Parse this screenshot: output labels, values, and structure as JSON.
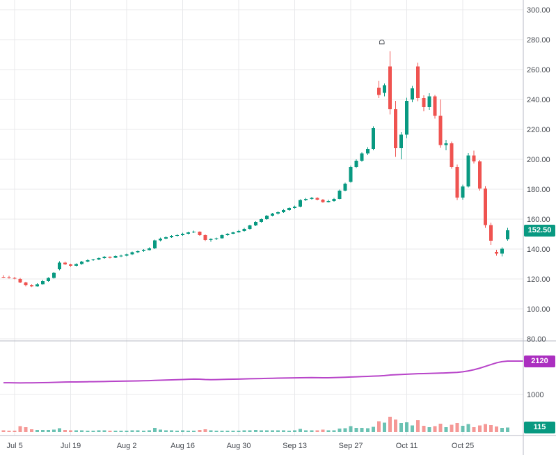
{
  "chart": {
    "colors": {
      "up": "#089981",
      "down": "#ef5350",
      "volume_up": "rgba(8,153,129,0.6)",
      "volume_down": "rgba(239,83,80,0.6)",
      "indicator_line": "#b845c9",
      "indicator_badge": "#ab2fc0",
      "price_badge": "#089981",
      "volume_badge": "#089981",
      "grid": "#e8e9eb",
      "axis_border": "#b7bac4",
      "axis_text": "#44484f",
      "background": "#ffffff"
    },
    "badges": {
      "price": "152.50",
      "indicator": "2120",
      "volume": "115"
    },
    "marker": {
      "i": 68,
      "label": "D"
    },
    "price_axis": [
      {
        "v": 300,
        "label": "300.00"
      },
      {
        "v": 280,
        "label": "280.00"
      },
      {
        "v": 260,
        "label": "260.00"
      },
      {
        "v": 240,
        "label": "240.00"
      },
      {
        "v": 220,
        "label": "220.00"
      },
      {
        "v": 200,
        "label": "200.00"
      },
      {
        "v": 180,
        "label": "180.00"
      },
      {
        "v": 160,
        "label": "160.00"
      },
      {
        "v": 140,
        "label": "140.00"
      },
      {
        "v": 120,
        "label": "120.00"
      },
      {
        "v": 100,
        "label": "100.00"
      },
      {
        "v": 80,
        "label": "80.00"
      }
    ],
    "time_axis": [
      {
        "i": 2,
        "label": "Jul 5"
      },
      {
        "i": 12,
        "label": "Jul 19"
      },
      {
        "i": 22,
        "label": "Aug 2"
      },
      {
        "i": 32,
        "label": "Aug 16"
      },
      {
        "i": 42,
        "label": "Aug 30"
      },
      {
        "i": 52,
        "label": "Sep 13"
      },
      {
        "i": 62,
        "label": "Sep 27"
      },
      {
        "i": 72,
        "label": "Oct 11"
      },
      {
        "i": 82,
        "label": "Oct 25"
      }
    ]
  },
  "chart_data": [
    {
      "type": "candlestick",
      "name": "price",
      "ylim": [
        80,
        300
      ],
      "y_gridstep": 20,
      "last_close": 152.5,
      "fields": [
        "date",
        "open",
        "high",
        "low",
        "close"
      ],
      "candles": [
        [
          "Jul 1",
          121.4,
          122.6,
          120.6,
          121.2
        ],
        [
          "Jul 2",
          121.2,
          122.0,
          120.2,
          120.6
        ],
        [
          "Jul 5",
          120.6,
          121.4,
          119.8,
          120.2
        ],
        [
          "Jul 6",
          120.0,
          120.6,
          117.2,
          117.6
        ],
        [
          "Jul 7",
          117.6,
          118.2,
          115.2,
          115.8
        ],
        [
          "Jul 8",
          115.8,
          116.6,
          114.6,
          115.2
        ],
        [
          "Jul 9",
          115.2,
          117.2,
          114.8,
          116.6
        ],
        [
          "Jul 12",
          116.6,
          119.2,
          116.2,
          118.6
        ],
        [
          "Jul 13",
          118.6,
          121.2,
          118.2,
          120.6
        ],
        [
          "Jul 14",
          120.6,
          124.6,
          120.2,
          124.2
        ],
        [
          "Jul 15",
          126.4,
          131.8,
          125.8,
          131.0
        ],
        [
          "Jul 16",
          131.0,
          131.6,
          129.2,
          129.8
        ],
        [
          "Jul 19",
          129.8,
          130.2,
          128.2,
          128.8
        ],
        [
          "Jul 20",
          128.8,
          130.4,
          128.4,
          129.9
        ],
        [
          "Jul 21",
          129.9,
          132.2,
          129.6,
          131.6
        ],
        [
          "Jul 22",
          131.6,
          133.2,
          131.2,
          132.6
        ],
        [
          "Jul 23",
          132.6,
          133.6,
          132.0,
          133.1
        ],
        [
          "Jul 26",
          133.1,
          134.4,
          132.6,
          133.9
        ],
        [
          "Jul 27",
          133.9,
          135.4,
          133.5,
          134.9
        ],
        [
          "Jul 28",
          134.9,
          135.2,
          133.8,
          134.3
        ],
        [
          "Jul 29",
          134.3,
          135.9,
          134.0,
          135.3
        ],
        [
          "Jul 30",
          135.3,
          136.2,
          134.7,
          135.5
        ],
        [
          "Aug 2",
          135.5,
          136.9,
          135.1,
          136.4
        ],
        [
          "Aug 3",
          136.4,
          138.3,
          136.0,
          137.8
        ],
        [
          "Aug 4",
          137.8,
          139.1,
          137.3,
          138.6
        ],
        [
          "Aug 5",
          138.6,
          139.9,
          138.2,
          139.4
        ],
        [
          "Aug 6",
          139.4,
          141.1,
          139.0,
          140.5
        ],
        [
          "Aug 9",
          140.5,
          146.3,
          140.1,
          145.8
        ],
        [
          "Aug 10",
          145.8,
          147.6,
          145.1,
          147.0
        ],
        [
          "Aug 11",
          147.0,
          148.5,
          146.5,
          147.9
        ],
        [
          "Aug 12",
          147.9,
          149.3,
          147.4,
          148.8
        ],
        [
          "Aug 13",
          148.8,
          149.9,
          148.3,
          149.3
        ],
        [
          "Aug 16",
          149.3,
          150.9,
          148.9,
          150.2
        ],
        [
          "Aug 17",
          150.2,
          151.7,
          149.8,
          151.1
        ],
        [
          "Aug 18",
          151.1,
          152.3,
          150.7,
          151.7
        ],
        [
          "Aug 19",
          151.7,
          151.9,
          148.9,
          149.3
        ],
        [
          "Aug 20",
          149.3,
          149.7,
          145.3,
          146.0
        ],
        [
          "Aug 23",
          146.0,
          147.1,
          144.9,
          146.7
        ],
        [
          "Aug 24",
          146.7,
          147.7,
          146.1,
          147.2
        ],
        [
          "Aug 25",
          147.2,
          149.7,
          146.9,
          149.3
        ],
        [
          "Aug 26",
          149.3,
          150.7,
          148.9,
          150.2
        ],
        [
          "Aug 27",
          150.2,
          151.7,
          149.9,
          151.2
        ],
        [
          "Aug 30",
          151.2,
          152.7,
          150.9,
          152.1
        ],
        [
          "Aug 31",
          152.1,
          154.1,
          151.7,
          153.6
        ],
        [
          "Sep 1",
          153.6,
          156.3,
          153.1,
          155.8
        ],
        [
          "Sep 2",
          155.8,
          158.7,
          155.4,
          158.1
        ],
        [
          "Sep 3",
          158.1,
          160.5,
          157.7,
          160.0
        ],
        [
          "Sep 6",
          160.0,
          162.9,
          159.6,
          162.3
        ],
        [
          "Sep 7",
          162.3,
          164.3,
          161.8,
          163.7
        ],
        [
          "Sep 8",
          163.7,
          165.3,
          163.1,
          164.7
        ],
        [
          "Sep 9",
          164.7,
          166.7,
          164.2,
          166.0
        ],
        [
          "Sep 10",
          166.0,
          168.0,
          165.6,
          167.4
        ],
        [
          "Sep 13",
          167.4,
          169.1,
          166.9,
          168.4
        ],
        [
          "Sep 14",
          168.4,
          173.3,
          168.0,
          172.7
        ],
        [
          "Sep 15",
          172.7,
          174.3,
          172.1,
          173.5
        ],
        [
          "Sep 16",
          173.5,
          174.9,
          173.1,
          174.1
        ],
        [
          "Sep 17",
          174.1,
          174.7,
          172.5,
          173.0
        ],
        [
          "Sep 20",
          173.0,
          173.5,
          170.9,
          171.5
        ],
        [
          "Sep 21",
          171.5,
          173.1,
          171.1,
          172.1
        ],
        [
          "Sep 22",
          172.1,
          174.3,
          171.7,
          173.6
        ],
        [
          "Sep 23",
          173.6,
          179.7,
          173.3,
          179.0
        ],
        [
          "Sep 24",
          179.0,
          184.5,
          178.5,
          183.8
        ],
        [
          "Sep 27",
          185.0,
          195.9,
          184.5,
          195.0
        ],
        [
          "Sep 28",
          195.0,
          200.1,
          194.1,
          199.0
        ],
        [
          "Sep 29",
          199.0,
          204.7,
          198.3,
          204.0
        ],
        [
          "Sep 30",
          204.0,
          208.1,
          202.7,
          207.0
        ],
        [
          "Oct 1",
          207.0,
          222.0,
          206.1,
          221.0
        ],
        [
          "Oct 4",
          248.0,
          252.6,
          241.0,
          243.0
        ],
        [
          "Oct 5",
          244.5,
          250.6,
          242.1,
          249.5
        ],
        [
          "Oct 6",
          262.0,
          272.4,
          230.1,
          233.5
        ],
        [
          "Oct 7",
          233.5,
          239.1,
          201.7,
          207.5
        ],
        [
          "Oct 8",
          207.5,
          218.1,
          200.1,
          216.5
        ],
        [
          "Oct 11",
          216.5,
          241.1,
          214.1,
          239.0
        ],
        [
          "Oct 12",
          240.0,
          249.1,
          238.1,
          247.5
        ],
        [
          "Oct 13",
          262.0,
          264.7,
          238.9,
          241.0
        ],
        [
          "Oct 14",
          241.0,
          242.7,
          232.1,
          235.0
        ],
        [
          "Oct 15",
          235.0,
          244.1,
          233.1,
          242.0
        ],
        [
          "Oct 18",
          242.0,
          243.1,
          227.1,
          229.0
        ],
        [
          "Oct 19",
          229.0,
          240.1,
          207.6,
          209.5
        ],
        [
          "Oct 20",
          209.5,
          213.1,
          206.1,
          210.6
        ],
        [
          "Oct 21",
          210.6,
          211.9,
          193.7,
          195.0
        ],
        [
          "Oct 22",
          195.0,
          196.5,
          172.7,
          174.5
        ],
        [
          "Oct 25",
          174.5,
          183.1,
          173.1,
          181.8
        ],
        [
          "Oct 26",
          181.8,
          204.1,
          181.1,
          202.6
        ],
        [
          "Oct 27",
          202.6,
          205.9,
          197.1,
          198.5
        ],
        [
          "Oct 28",
          198.5,
          199.5,
          179.1,
          180.5
        ],
        [
          "Oct 29",
          180.5,
          182.1,
          154.1,
          156.0
        ],
        [
          "Nov 1",
          156.0,
          157.7,
          142.9,
          145.5
        ],
        [
          "Nov 2",
          138.2,
          139.5,
          135.5,
          137.0
        ],
        [
          "Nov 3",
          137.0,
          141.1,
          135.1,
          140.2
        ],
        [
          "Nov 4",
          146.5,
          154.1,
          145.6,
          152.5
        ]
      ]
    },
    {
      "type": "line",
      "name": "indicator",
      "last": 2120,
      "ylim": [
        420,
        2750
      ],
      "gridline_value": 1000,
      "gridline_label": "1000",
      "values": [
        1395,
        1393,
        1391,
        1389,
        1390,
        1392,
        1394,
        1397,
        1400,
        1405,
        1412,
        1416,
        1419,
        1421,
        1424,
        1427,
        1430,
        1433,
        1436,
        1439,
        1442,
        1445,
        1448,
        1452,
        1456,
        1460,
        1465,
        1472,
        1478,
        1484,
        1490,
        1496,
        1503,
        1510,
        1516,
        1512,
        1501,
        1495,
        1499,
        1505,
        1509,
        1513,
        1517,
        1522,
        1527,
        1531,
        1535,
        1539,
        1543,
        1547,
        1551,
        1554,
        1558,
        1561,
        1564,
        1566,
        1562,
        1559,
        1561,
        1565,
        1571,
        1577,
        1585,
        1593,
        1601,
        1607,
        1614,
        1622,
        1632,
        1652,
        1663,
        1671,
        1681,
        1689,
        1697,
        1701,
        1707,
        1711,
        1717,
        1723,
        1731,
        1741,
        1761,
        1791,
        1831,
        1881,
        1941,
        2001,
        2061,
        2101,
        2120
      ]
    },
    {
      "type": "bar",
      "name": "volume",
      "last": 115,
      "values": [
        46,
        38,
        32,
        150,
        120,
        70,
        52,
        48,
        50,
        58,
        95,
        54,
        46,
        40,
        42,
        38,
        36,
        40,
        44,
        38,
        36,
        34,
        38,
        42,
        40,
        38,
        42,
        100,
        62,
        46,
        40,
        38,
        40,
        38,
        36,
        52,
        66,
        42,
        36,
        38,
        36,
        34,
        36,
        40,
        46,
        50,
        46,
        44,
        42,
        40,
        40,
        38,
        40,
        75,
        46,
        40,
        44,
        58,
        42,
        44,
        85,
        95,
        150,
        105,
        100,
        95,
        130,
        265,
        235,
        380,
        310,
        225,
        245,
        165,
        290,
        155,
        125,
        145,
        205,
        125,
        185,
        225,
        155,
        195,
        125,
        165,
        195,
        175,
        135,
        105,
        115
      ]
    }
  ]
}
